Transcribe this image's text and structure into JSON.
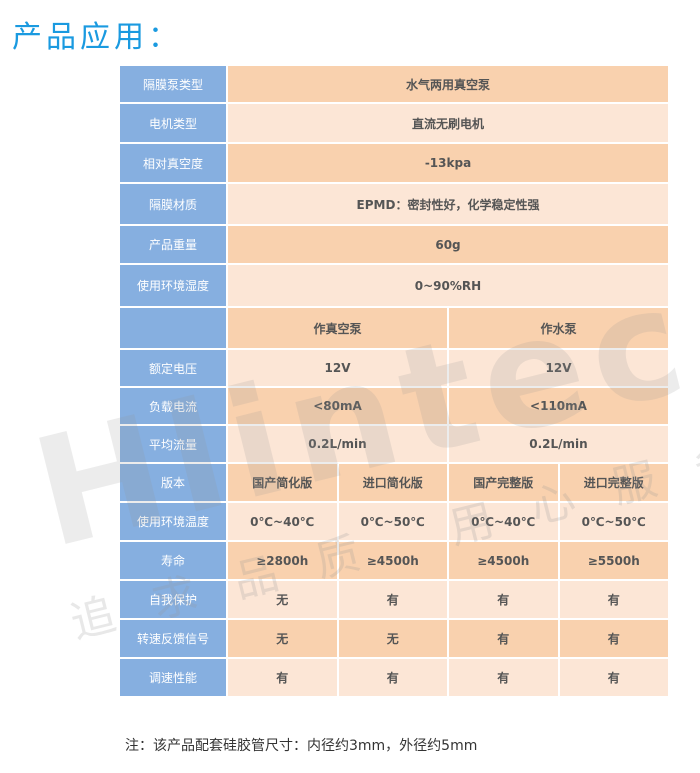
{
  "title": "产品应用：",
  "single_rows": [
    {
      "label": "隔膜泵类型",
      "value": "水气两用真空泵"
    },
    {
      "label": "电机类型",
      "value": "直流无刷电机"
    },
    {
      "label": "相对真空度",
      "value": "-13kpa"
    },
    {
      "label": "隔膜材质",
      "value": "EPMD：密封性好，化学稳定性强"
    },
    {
      "label": "产品重量",
      "value": "60g"
    },
    {
      "label": "使用环境湿度",
      "value": "0~90%RH"
    }
  ],
  "pump_header": [
    "作真空泵",
    "作水泵"
  ],
  "pump_rows": [
    {
      "label": "额定电压",
      "values": [
        "12V",
        "12V"
      ]
    },
    {
      "label": "负载电流",
      "values": [
        "<80mA",
        "<110mA"
      ]
    },
    {
      "label": "平均流量",
      "values": [
        "0.2L/min",
        "0.2L/min"
      ]
    }
  ],
  "version_rows": [
    {
      "label": "版本",
      "values": [
        "国产简化版",
        "进口简化版",
        "国产完整版",
        "进口完整版"
      ]
    },
    {
      "label": "使用环境温度",
      "values": [
        "0℃~40℃",
        "0℃~50℃",
        "0℃~40℃",
        "0℃~50℃"
      ]
    },
    {
      "label": "寿命",
      "values": [
        "≥2800h",
        "≥4500h",
        "≥4500h",
        "≥5500h"
      ]
    },
    {
      "label": "自我保护",
      "values": [
        "无",
        "有",
        "有",
        "有"
      ]
    },
    {
      "label": "转速反馈信号",
      "values": [
        "无",
        "无",
        "有",
        "有"
      ]
    },
    {
      "label": "调速性能",
      "values": [
        "有",
        "有",
        "有",
        "有"
      ]
    }
  ],
  "watermark": {
    "brand": "Hlintec",
    "slogan": "追求品质 用心服务"
  },
  "note": "注：该产品配套硅胶管尺寸：内径约3mm，外径约5mm",
  "colors": {
    "title": "#1a9ae0",
    "label_bg": "#86afe0",
    "row_dark": "#f9d1ae",
    "row_light": "#fce6d6"
  }
}
